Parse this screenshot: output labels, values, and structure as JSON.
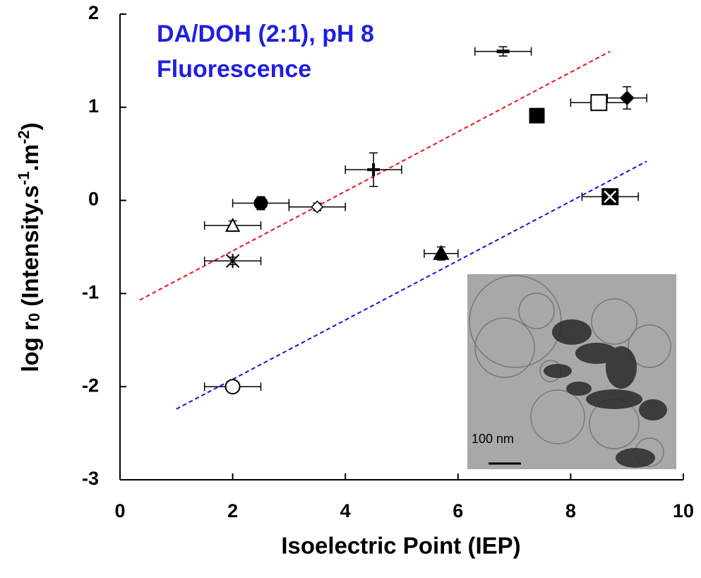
{
  "chart_data": {
    "type": "scatter",
    "title": [
      "DA/DOH (2:1), pH 8",
      "Fluorescence"
    ],
    "title_color": "#1f1fe0",
    "xlabel": "Isoelectric Point (IEP)",
    "ylabel": [
      "log r",
      "0",
      " (Intensity.s",
      "-1",
      ".m",
      "-2",
      ")"
    ],
    "xlim": [
      0,
      10
    ],
    "xticks": [
      0,
      2,
      4,
      6,
      8,
      10
    ],
    "ylim": [
      -3,
      2
    ],
    "yticks": [
      -3,
      -2,
      -1,
      0,
      1,
      2
    ],
    "points": [
      {
        "x": 2,
        "y": -2,
        "xerr": 0.5,
        "yerr": 0.03,
        "marker": "circle-open"
      },
      {
        "x": 2,
        "y": -0.27,
        "xerr": 0.5,
        "yerr": 0.05,
        "marker": "triangle-open"
      },
      {
        "x": 2,
        "y": -0.65,
        "xerr": 0.5,
        "yerr": 0.04,
        "marker": "asterisk"
      },
      {
        "x": 2.5,
        "y": -0.03,
        "xerr": 0.5,
        "yerr": 0.07,
        "marker": "circle-filled"
      },
      {
        "x": 3.5,
        "y": -0.07,
        "xerr": 0.5,
        "yerr": 0.04,
        "marker": "diamond-open"
      },
      {
        "x": 4.5,
        "y": 0.33,
        "xerr": 0.5,
        "yerr": 0.18,
        "marker": "plus"
      },
      {
        "x": 5.7,
        "y": -0.57,
        "xerr": 0.3,
        "yerr": 0.07,
        "marker": "triangle-filled"
      },
      {
        "x": 6.8,
        "y": 1.6,
        "xerr": 0.5,
        "yerr": 0.05,
        "marker": "dash"
      },
      {
        "x": 7.4,
        "y": 0.91,
        "xerr": 0.1,
        "yerr": 0.03,
        "marker": "square-filled"
      },
      {
        "x": 8.5,
        "y": 1.05,
        "xerr": 0.5,
        "yerr": 0.03,
        "marker": "square-open"
      },
      {
        "x": 9,
        "y": 1.1,
        "xerr": 0.35,
        "yerr": 0.12,
        "marker": "diamond-filled"
      },
      {
        "x": 8.7,
        "y": 0.04,
        "xerr": 0.5,
        "yerr": 0.04,
        "marker": "square-x"
      }
    ],
    "fit_lines": [
      {
        "color": "#e8141c",
        "x": [
          0.35,
          8.7
        ],
        "y": [
          -1.07,
          1.6
        ]
      },
      {
        "color": "#1414d8",
        "x": [
          1,
          9.35
        ],
        "y": [
          -2.24,
          0.42
        ]
      }
    ],
    "inset_label": "100 nm"
  }
}
